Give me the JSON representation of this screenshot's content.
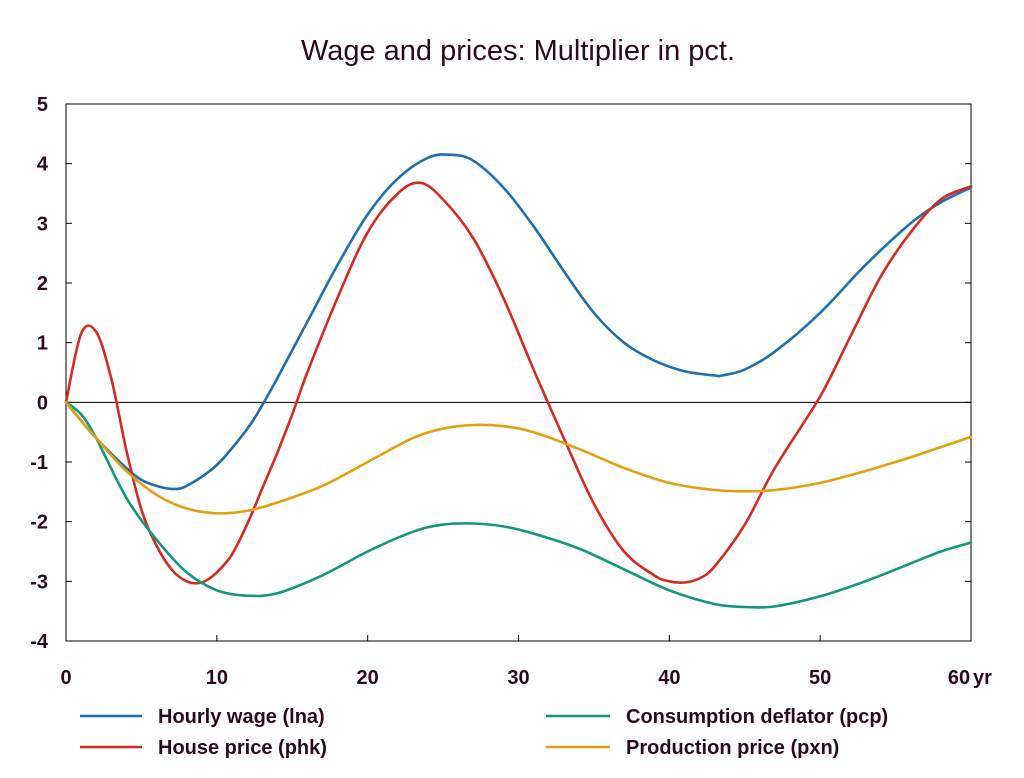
{
  "chart_data": {
    "type": "line",
    "title": "Wage and prices: Multiplier in pct.",
    "xlabel": "",
    "ylabel": "",
    "x_unit_label": "yr",
    "xlim": [
      0,
      60
    ],
    "ylim": [
      -4,
      5
    ],
    "x_ticks": [
      0,
      10,
      20,
      30,
      40,
      50,
      60
    ],
    "y_ticks": [
      5,
      4,
      3,
      2,
      1,
      0,
      -1,
      -2,
      -3,
      -4
    ],
    "zero_line": true,
    "grid": false,
    "legend_placement": "bottom",
    "series": [
      {
        "name": "Hourly wage (lna)",
        "color": "#1f6fae",
        "x": [
          0,
          2,
          4,
          5,
          6,
          7,
          8,
          10,
          12,
          13,
          14,
          16,
          18,
          20,
          22,
          24,
          25.5,
          27,
          29,
          31,
          33,
          35,
          37,
          39,
          41,
          43,
          43.5,
          45,
          47,
          50,
          53,
          56,
          58,
          60
        ],
        "y": [
          0,
          -0.6,
          -1.1,
          -1.3,
          -1.4,
          -1.45,
          -1.4,
          -1.05,
          -0.45,
          -0.05,
          0.4,
          1.35,
          2.3,
          3.15,
          3.75,
          4.1,
          4.15,
          4.05,
          3.6,
          2.95,
          2.2,
          1.5,
          1.0,
          0.7,
          0.52,
          0.45,
          0.45,
          0.55,
          0.85,
          1.5,
          2.3,
          3.0,
          3.35,
          3.6
        ]
      },
      {
        "name": "House price (phk)",
        "color": "#d42a21",
        "x": [
          0,
          1,
          2,
          3,
          4,
          5,
          6,
          7,
          8,
          9,
          10,
          11,
          12,
          13,
          14,
          15,
          16,
          18,
          20,
          22,
          23.5,
          25,
          27,
          29,
          31,
          33,
          35,
          37,
          39,
          40,
          41,
          42,
          43,
          45,
          47,
          50,
          52,
          54,
          56,
          58,
          60
        ],
        "y": [
          0,
          1.15,
          1.18,
          0.4,
          -0.8,
          -1.8,
          -2.4,
          -2.8,
          -3.0,
          -3.02,
          -2.85,
          -2.55,
          -2.05,
          -1.45,
          -0.85,
          -0.2,
          0.5,
          1.75,
          2.85,
          3.5,
          3.68,
          3.4,
          2.75,
          1.75,
          0.55,
          -0.6,
          -1.7,
          -2.5,
          -2.9,
          -3.0,
          -3.02,
          -2.95,
          -2.75,
          -2.05,
          -1.1,
          0.1,
          1.1,
          2.1,
          2.85,
          3.4,
          3.62
        ]
      },
      {
        "name": "Consumption deflator (pcp)",
        "color": "#12977a",
        "x": [
          0,
          1,
          2,
          4,
          6,
          8,
          10,
          12,
          14,
          17,
          20,
          23,
          25,
          27,
          29,
          31,
          34,
          37,
          40,
          43,
          45,
          47,
          50,
          53,
          56,
          58,
          60
        ],
        "y": [
          0,
          -0.2,
          -0.6,
          -1.6,
          -2.3,
          -2.85,
          -3.15,
          -3.24,
          -3.2,
          -2.9,
          -2.5,
          -2.17,
          -2.05,
          -2.03,
          -2.08,
          -2.2,
          -2.45,
          -2.8,
          -3.15,
          -3.38,
          -3.43,
          -3.42,
          -3.25,
          -3.0,
          -2.7,
          -2.5,
          -2.35
        ]
      },
      {
        "name": "Production price (pxn)",
        "color": "#e0a010",
        "x": [
          0,
          2,
          4,
          6,
          8,
          10,
          12,
          14,
          17,
          20,
          23,
          25,
          27,
          29,
          31,
          34,
          37,
          40,
          43,
          45,
          47,
          50,
          53,
          56,
          58,
          60
        ],
        "y": [
          0,
          -0.6,
          -1.15,
          -1.55,
          -1.78,
          -1.86,
          -1.82,
          -1.68,
          -1.4,
          -1.0,
          -0.6,
          -0.44,
          -0.38,
          -0.4,
          -0.5,
          -0.78,
          -1.1,
          -1.35,
          -1.47,
          -1.49,
          -1.47,
          -1.35,
          -1.15,
          -0.92,
          -0.75,
          -0.58
        ]
      }
    ]
  }
}
